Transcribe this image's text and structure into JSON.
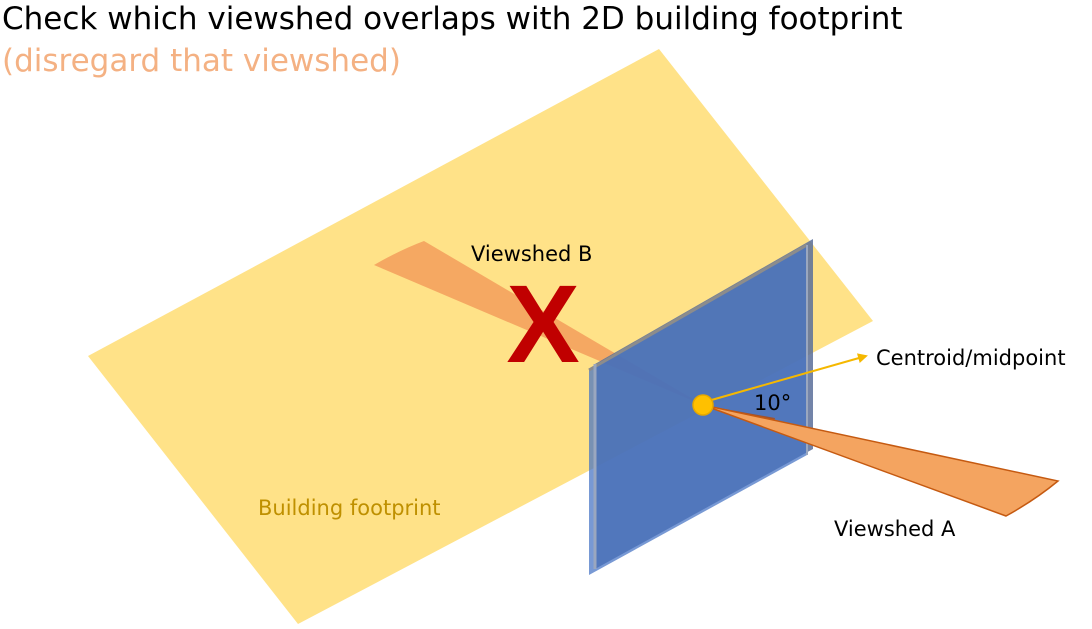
{
  "title": "Check which viewshed overlaps with 2D building footprint",
  "subtitle": "(disregard that viewshed)",
  "labels": {
    "viewshed_b": "Viewshed B",
    "viewshed_a": "Viewshed A",
    "centroid": "Centroid/midpoint",
    "angle": "10°",
    "footprint": "Building footprint"
  },
  "cross_mark": "X",
  "colors": {
    "footprint_fill": "#ffe082",
    "footprint_label": "#bf9000",
    "wall_fill": "#4472c4",
    "viewshed_fill": "#f4a460",
    "viewshed_shadow": "#a0522d",
    "centroid_fill": "#ffc000",
    "centroid_arrow": "#f5b800",
    "cross": "#c00000",
    "subtitle": "#f4b183"
  }
}
